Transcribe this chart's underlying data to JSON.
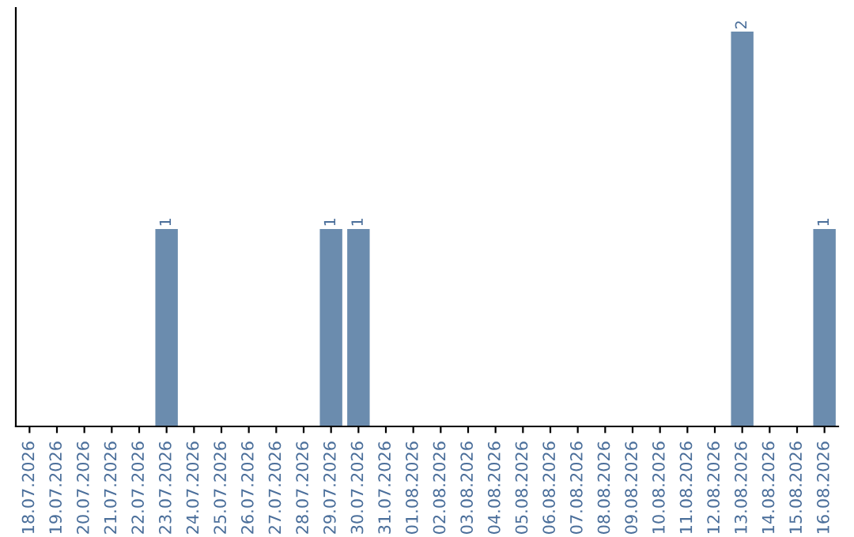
{
  "chart_data": {
    "type": "bar",
    "categories": [
      "18.07.2026",
      "19.07.2026",
      "20.07.2026",
      "21.07.2026",
      "22.07.2026",
      "23.07.2026",
      "24.07.2026",
      "25.07.2026",
      "26.07.2026",
      "27.07.2026",
      "28.07.2026",
      "29.07.2026",
      "30.07.2026",
      "31.07.2026",
      "01.08.2026",
      "02.08.2026",
      "03.08.2026",
      "04.08.2026",
      "05.08.2026",
      "06.08.2026",
      "07.08.2026",
      "08.08.2026",
      "09.08.2026",
      "10.08.2026",
      "11.08.2026",
      "12.08.2026",
      "13.08.2026",
      "14.08.2026",
      "15.08.2026",
      "16.08.2026"
    ],
    "values": [
      0,
      0,
      0,
      0,
      0,
      1,
      0,
      0,
      0,
      0,
      0,
      1,
      1,
      0,
      0,
      0,
      0,
      0,
      0,
      0,
      0,
      0,
      0,
      0,
      0,
      0,
      2,
      0,
      0,
      1
    ],
    "color": "#6b8cae",
    "value_labels": [
      null,
      null,
      null,
      null,
      null,
      "1",
      null,
      null,
      null,
      null,
      null,
      "1",
      "1",
      null,
      null,
      null,
      null,
      null,
      null,
      null,
      null,
      null,
      null,
      null,
      null,
      null,
      "2",
      null,
      null,
      "1"
    ],
    "tick_labels": "x",
    "grid": false,
    "legend": false
  }
}
